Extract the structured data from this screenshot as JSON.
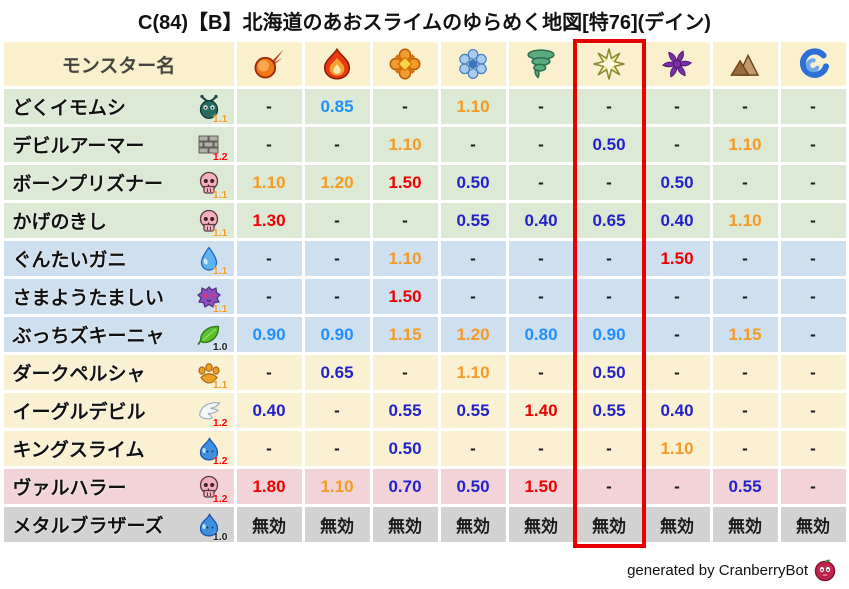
{
  "title": "C(84)【B】北海道のあおスライムのゆらめく地図[特76](デイン)",
  "table": {
    "name_header": "モンスター名",
    "highlight_column_index": 5,
    "columns": [
      {
        "icon": "fireball-icon"
      },
      {
        "icon": "flame-icon"
      },
      {
        "icon": "burst-icon"
      },
      {
        "icon": "snowflake-icon"
      },
      {
        "icon": "tornado-icon"
      },
      {
        "icon": "starburst-icon"
      },
      {
        "icon": "pinwheel-icon"
      },
      {
        "icon": "mountain-icon"
      },
      {
        "icon": "wave-icon"
      }
    ],
    "rows": [
      {
        "name": "どくイモムシ",
        "icon": "bug-icon",
        "multiplier": "1.1",
        "multiplier_color": "orange",
        "group": "green",
        "values": [
          "-",
          "0.85",
          "-",
          "1.10",
          "-",
          "-",
          "-",
          "-",
          "-"
        ]
      },
      {
        "name": "デビルアーマー",
        "icon": "brick-icon",
        "multiplier": "1.2",
        "multiplier_color": "red",
        "group": "green",
        "values": [
          "-",
          "-",
          "1.10",
          "-",
          "-",
          "0.50",
          "-",
          "1.10",
          "-"
        ]
      },
      {
        "name": "ボーンプリズナー",
        "icon": "skull-icon",
        "multiplier": "1.1",
        "multiplier_color": "orange",
        "group": "green",
        "values": [
          "1.10",
          "1.20",
          "1.50",
          "0.50",
          "-",
          "-",
          "0.50",
          "-",
          "-"
        ]
      },
      {
        "name": "かげのきし",
        "icon": "skull-icon",
        "multiplier": "1.1",
        "multiplier_color": "orange",
        "group": "green",
        "values": [
          "1.30",
          "-",
          "-",
          "0.55",
          "0.40",
          "0.65",
          "0.40",
          "1.10",
          "-"
        ]
      },
      {
        "name": "ぐんたいガニ",
        "icon": "drop-icon",
        "multiplier": "1.1",
        "multiplier_color": "orange",
        "group": "blue",
        "values": [
          "-",
          "-",
          "1.10",
          "-",
          "-",
          "-",
          "1.50",
          "-",
          "-"
        ]
      },
      {
        "name": "さまようたましい",
        "icon": "ghost-icon",
        "multiplier": "1.1",
        "multiplier_color": "orange",
        "group": "blue",
        "values": [
          "-",
          "-",
          "1.50",
          "-",
          "-",
          "-",
          "-",
          "-",
          "-"
        ]
      },
      {
        "name": "ぶっちズキーニャ",
        "icon": "leaf-icon",
        "multiplier": "1.0",
        "multiplier_color": "black",
        "group": "blue",
        "values": [
          "0.90",
          "0.90",
          "1.15",
          "1.20",
          "0.80",
          "0.90",
          "-",
          "1.15",
          "-"
        ]
      },
      {
        "name": "ダークペルシャ",
        "icon": "paw-icon",
        "multiplier": "1.1",
        "multiplier_color": "orange",
        "group": "cream",
        "values": [
          "-",
          "0.65",
          "-",
          "1.10",
          "-",
          "0.50",
          "-",
          "-",
          "-"
        ]
      },
      {
        "name": "イーグルデビル",
        "icon": "wing-icon",
        "multiplier": "1.2",
        "multiplier_color": "red",
        "group": "cream",
        "values": [
          "0.40",
          "-",
          "0.55",
          "0.55",
          "1.40",
          "0.55",
          "0.40",
          "-",
          "-"
        ]
      },
      {
        "name": "キングスライム",
        "icon": "slime-icon",
        "multiplier": "1.2",
        "multiplier_color": "red",
        "group": "cream",
        "values": [
          "-",
          "-",
          "0.50",
          "-",
          "-",
          "-",
          "1.10",
          "-",
          "-"
        ]
      },
      {
        "name": "ヴァルハラー",
        "icon": "skull-icon",
        "multiplier": "1.2",
        "multiplier_color": "red",
        "group": "pink",
        "values": [
          "1.80",
          "1.10",
          "0.70",
          "0.50",
          "1.50",
          "-",
          "-",
          "0.55",
          "-"
        ]
      },
      {
        "name": "メタルブラザーズ",
        "icon": "slime-icon",
        "multiplier": "1.0",
        "multiplier_color": "black",
        "group": "gray",
        "values": [
          "無効",
          "無効",
          "無効",
          "無効",
          "無効",
          "無効",
          "無効",
          "無効",
          "無効"
        ]
      }
    ]
  },
  "footer": {
    "credit": "generated by CranberryBot",
    "icon": "cranberry-icon"
  },
  "palette": {
    "header_bg": "#FAF0CD",
    "header_text": "#45453E",
    "row_green": "#DCE9D5",
    "row_blue": "#CEDFF0",
    "row_cream": "#FAF0D2",
    "row_pink": "#F2D4D8",
    "row_gray": "#D2D2D2",
    "value_red": "#EE0000",
    "value_orange": "#F59A23",
    "value_lightblue": "#1E90FF",
    "value_darkblue": "#2222CC",
    "value_black": "#1A1A1A",
    "mult_orange": "#F59A23",
    "mult_red": "#FF0000",
    "mult_black": "#222222",
    "highlight_red": "#E60000"
  }
}
